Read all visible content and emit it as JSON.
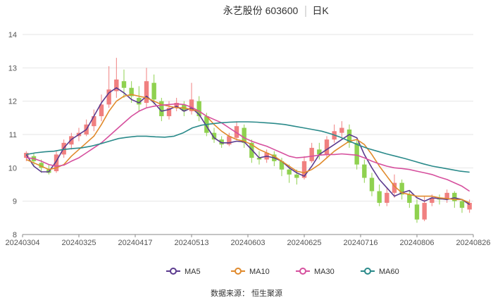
{
  "title": {
    "stock": "永艺股份 603600",
    "period": "日K"
  },
  "source": "数据来源： 恒生聚源",
  "colors": {
    "up": "#f08080",
    "down": "#8fd14f",
    "MA5": "#5b3a8e",
    "MA10": "#e08a2c",
    "MA30": "#d6509e",
    "MA60": "#2a8a8a",
    "grid": "#e6e6e6"
  },
  "chart_data": {
    "type": "candlestick",
    "ylim": [
      8,
      14
    ],
    "y_ticks": [
      8,
      9,
      10,
      11,
      12,
      13,
      14
    ],
    "x_ticks": [
      "20240304",
      "20240325",
      "20240417",
      "20240513",
      "20240603",
      "20240625",
      "20240716",
      "20240806",
      "20240826"
    ],
    "grid": "horizontal",
    "legend_position": "bottom",
    "series": [
      {
        "name": "MA5",
        "values": [
          10.4,
          10.05,
          9.88,
          9.88,
          10.2,
          10.6,
          10.85,
          11.0,
          11.15,
          11.55,
          11.95,
          12.25,
          12.4,
          12.25,
          12.05,
          11.95,
          12.15,
          11.95,
          11.7,
          11.75,
          11.85,
          11.7,
          11.8,
          11.6,
          11.25,
          10.9,
          10.75,
          10.75,
          10.8,
          10.78,
          10.55,
          10.3,
          10.35,
          10.3,
          10.2,
          10.0,
          9.85,
          9.75,
          10.05,
          10.4,
          10.55,
          10.7,
          10.85,
          11.0,
          10.9,
          10.4,
          10.0,
          9.65,
          9.4,
          9.15,
          9.25,
          9.32,
          9.1,
          9.0,
          9.1,
          9.08,
          9.05,
          9.1,
          9.05,
          8.9
        ]
      },
      {
        "name": "MA10",
        "values": [
          10.25,
          10.15,
          10.05,
          9.95,
          10.0,
          10.1,
          10.35,
          10.55,
          10.75,
          10.95,
          11.3,
          11.7,
          12.0,
          12.15,
          12.2,
          12.15,
          12.1,
          12.0,
          11.9,
          11.85,
          11.8,
          11.8,
          11.75,
          11.7,
          11.55,
          11.3,
          11.1,
          10.95,
          10.85,
          10.8,
          10.7,
          10.55,
          10.45,
          10.35,
          10.2,
          10.05,
          9.9,
          9.85,
          9.95,
          10.1,
          10.3,
          10.5,
          10.65,
          10.8,
          10.85,
          10.7,
          10.4,
          10.05,
          9.75,
          9.45,
          9.25,
          9.2,
          9.15,
          9.15,
          9.15,
          9.1,
          9.08,
          9.05,
          9.05,
          8.95
        ]
      },
      {
        "name": "MA30",
        "values": [
          10.3,
          10.28,
          10.2,
          10.1,
          10.05,
          10.08,
          10.2,
          10.3,
          10.45,
          10.6,
          10.75,
          10.95,
          11.15,
          11.35,
          11.55,
          11.7,
          11.8,
          11.85,
          11.88,
          11.9,
          11.92,
          11.9,
          11.82,
          11.7,
          11.55,
          11.45,
          11.35,
          11.2,
          11.05,
          10.9,
          10.8,
          10.72,
          10.65,
          10.55,
          10.45,
          10.35,
          10.3,
          10.32,
          10.35,
          10.38,
          10.4,
          10.4,
          10.42,
          10.4,
          10.38,
          10.3,
          10.2,
          10.12,
          10.05,
          10.0,
          9.98,
          9.95,
          9.9,
          9.85,
          9.8,
          9.72,
          9.65,
          9.55,
          9.45,
          9.3
        ]
      },
      {
        "name": "MA60",
        "values": [
          10.4,
          10.45,
          10.48,
          10.5,
          10.55,
          10.58,
          10.6,
          10.65,
          10.72,
          10.8,
          10.88,
          10.92,
          10.95,
          10.95,
          10.93,
          10.92,
          10.95,
          11.05,
          11.2,
          11.28,
          11.32,
          11.35,
          11.37,
          11.38,
          11.38,
          11.37,
          11.35,
          11.33,
          11.3,
          11.25,
          11.2,
          11.15,
          11.1,
          11.02,
          10.92,
          10.8,
          10.68,
          10.58,
          10.5,
          10.42,
          10.35,
          10.28,
          10.2,
          10.12,
          10.05,
          10.0,
          9.95,
          9.9,
          9.87
        ]
      }
    ],
    "candles": [
      [
        10.3,
        10.45,
        10.5,
        10.2
      ],
      [
        10.35,
        10.2,
        10.45,
        10.05
      ],
      [
        10.15,
        10.0,
        10.25,
        9.85
      ],
      [
        9.95,
        9.85,
        10.1,
        9.8
      ],
      [
        9.9,
        10.4,
        10.5,
        9.85
      ],
      [
        10.4,
        10.75,
        10.85,
        10.3
      ],
      [
        10.7,
        10.95,
        11.05,
        10.55
      ],
      [
        10.95,
        11.05,
        11.2,
        10.8
      ],
      [
        11.0,
        11.3,
        11.45,
        10.95
      ],
      [
        11.25,
        11.55,
        11.75,
        11.1
      ],
      [
        11.55,
        11.9,
        12.2,
        11.4
      ],
      [
        11.9,
        12.35,
        13.05,
        11.8
      ],
      [
        12.3,
        12.65,
        13.3,
        12.1
      ],
      [
        12.6,
        12.4,
        12.95,
        12.1
      ],
      [
        12.4,
        12.15,
        12.6,
        11.95
      ],
      [
        12.1,
        11.9,
        12.45,
        11.7
      ],
      [
        11.95,
        12.6,
        13.0,
        11.8
      ],
      [
        12.55,
        12.05,
        12.8,
        11.9
      ],
      [
        12.0,
        11.55,
        12.1,
        11.4
      ],
      [
        11.55,
        11.8,
        12.0,
        11.45
      ],
      [
        11.8,
        11.95,
        12.1,
        11.7
      ],
      [
        11.9,
        11.7,
        12.0,
        11.55
      ],
      [
        11.7,
        12.05,
        12.55,
        11.6
      ],
      [
        12.0,
        11.55,
        12.15,
        11.4
      ],
      [
        11.55,
        11.05,
        11.65,
        10.95
      ],
      [
        11.05,
        10.85,
        11.2,
        10.75
      ],
      [
        10.85,
        10.7,
        10.95,
        10.6
      ],
      [
        10.7,
        10.95,
        11.05,
        10.65
      ],
      [
        10.9,
        11.25,
        11.4,
        10.85
      ],
      [
        11.2,
        10.75,
        11.3,
        10.6
      ],
      [
        10.75,
        10.3,
        10.85,
        10.15
      ],
      [
        10.3,
        10.25,
        10.5,
        10.1
      ],
      [
        10.25,
        10.45,
        10.55,
        10.15
      ],
      [
        10.4,
        10.2,
        10.5,
        10.05
      ],
      [
        10.2,
        9.95,
        10.3,
        9.75
      ],
      [
        9.95,
        9.8,
        10.1,
        9.55
      ],
      [
        9.8,
        9.7,
        9.95,
        9.5
      ],
      [
        9.7,
        10.2,
        10.35,
        9.65
      ],
      [
        10.2,
        10.6,
        10.75,
        10.15
      ],
      [
        10.55,
        10.4,
        10.75,
        10.25
      ],
      [
        10.4,
        10.85,
        10.95,
        10.3
      ],
      [
        10.85,
        11.1,
        11.3,
        10.75
      ],
      [
        11.05,
        11.2,
        11.4,
        10.9
      ],
      [
        11.15,
        10.75,
        11.3,
        10.6
      ],
      [
        10.75,
        10.1,
        10.85,
        9.95
      ],
      [
        10.1,
        9.7,
        10.25,
        9.55
      ],
      [
        9.7,
        9.3,
        9.85,
        9.15
      ],
      [
        9.3,
        8.95,
        9.5,
        8.85
      ],
      [
        8.95,
        9.25,
        9.4,
        8.85
      ],
      [
        9.25,
        9.55,
        9.8,
        9.1
      ],
      [
        9.55,
        9.2,
        9.65,
        9.05
      ],
      [
        9.2,
        8.95,
        9.3,
        8.8
      ],
      [
        8.9,
        8.45,
        9.05,
        8.35
      ],
      [
        8.45,
        8.95,
        9.15,
        8.4
      ],
      [
        8.95,
        9.1,
        9.2,
        8.85
      ],
      [
        9.1,
        9.05,
        9.2,
        8.9
      ],
      [
        9.05,
        9.25,
        9.35,
        8.95
      ],
      [
        9.25,
        9.0,
        9.3,
        8.8
      ],
      [
        9.0,
        8.8,
        9.05,
        8.65
      ],
      [
        8.75,
        8.95,
        9.05,
        8.65
      ]
    ]
  }
}
